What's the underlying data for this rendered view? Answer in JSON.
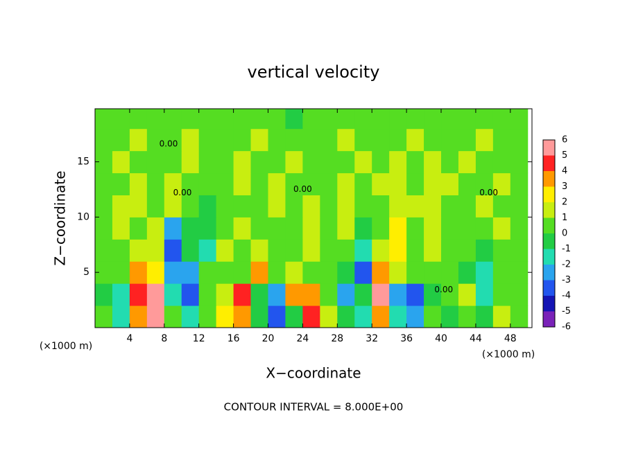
{
  "chart_data": {
    "type": "heatmap",
    "title": "vertical velocity",
    "x_label": "X−coordinate",
    "y_label": "Z−coordinate",
    "x_unit": "(×1000 m)",
    "y_unit": "(×1000 m)",
    "footer": "CONTOUR INTERVAL = 8.000E+00",
    "xlim": [
      0,
      50.5
    ],
    "ylim": [
      0,
      19.8
    ],
    "xticks": [
      4,
      8,
      12,
      16,
      20,
      24,
      28,
      32,
      36,
      40,
      44,
      48
    ],
    "yticks": [
      5,
      10,
      15
    ],
    "x": [
      1,
      3,
      5,
      7,
      9,
      11,
      13,
      15,
      17,
      19,
      21,
      23,
      25,
      27,
      29,
      31,
      33,
      35,
      37,
      39,
      41,
      43,
      45,
      47,
      49
    ],
    "y": [
      1,
      3,
      5,
      7,
      9,
      11,
      13,
      15,
      17,
      19
    ],
    "values": [
      [
        0.5,
        -2,
        3,
        5,
        0.5,
        -2,
        0.5,
        2,
        3,
        -1,
        -4,
        -1,
        4,
        1,
        -1,
        -2,
        3,
        -2,
        -3,
        0.5,
        -1,
        0.5,
        -1,
        1,
        0.5
      ],
      [
        -1,
        -2,
        4,
        6,
        -2,
        -4,
        0.5,
        1,
        4,
        -0.5,
        -3,
        3,
        3,
        0.5,
        -3,
        -1,
        6,
        -3,
        -4,
        -1,
        0.5,
        1,
        -2,
        0.5,
        0.5
      ],
      [
        0.5,
        0.5,
        3,
        2,
        -3,
        -3,
        0.5,
        0.5,
        0.5,
        3,
        0.5,
        1,
        0.5,
        0.5,
        -1,
        -4,
        3,
        1,
        0.5,
        0.5,
        0.5,
        -1,
        -2,
        0.5,
        0.5
      ],
      [
        0.5,
        0.5,
        1,
        1,
        -4,
        -1,
        -2,
        1,
        0.5,
        1,
        0.5,
        0.5,
        1,
        0.5,
        0.5,
        -2,
        1,
        2,
        0.5,
        1,
        0.5,
        0.5,
        -1,
        0.5,
        0.5
      ],
      [
        0.5,
        1,
        0.5,
        1,
        -3,
        -1,
        -1,
        0.5,
        1,
        0.5,
        0.5,
        0.5,
        1,
        0.5,
        1,
        -1,
        0.5,
        2,
        0.5,
        1.5,
        0.5,
        0.5,
        0.5,
        1,
        0.5
      ],
      [
        0.5,
        1,
        1,
        0.5,
        1,
        0.5,
        -1,
        0.5,
        0.5,
        0.5,
        1,
        0.5,
        1,
        0.5,
        1,
        0.5,
        0.5,
        1,
        1.5,
        1,
        0.5,
        0.5,
        1,
        0.5,
        0.5
      ],
      [
        0.5,
        0.5,
        1,
        0.5,
        1,
        0.5,
        0.5,
        0.5,
        1,
        0.5,
        1,
        0.5,
        0.5,
        0.5,
        1,
        0.5,
        1,
        1,
        0.5,
        1,
        1,
        0.5,
        0.5,
        1,
        0.5
      ],
      [
        0.5,
        1,
        0.5,
        0.5,
        0.5,
        1,
        0.5,
        0.5,
        1,
        0.5,
        0.5,
        1,
        0.5,
        0.5,
        0.5,
        1,
        0.5,
        1,
        0.5,
        1,
        0.5,
        1,
        0.5,
        0.5,
        0.5
      ],
      [
        0.5,
        0.5,
        1,
        0.5,
        0.5,
        1,
        0.5,
        0.5,
        0.5,
        1,
        0.5,
        0.5,
        0.5,
        0.5,
        1,
        0.5,
        0.5,
        0.5,
        1,
        0.5,
        0.5,
        0.5,
        1,
        0.5,
        0.5
      ],
      [
        0.5,
        0.5,
        0.5,
        0.5,
        0.5,
        0.5,
        0.5,
        0.5,
        0.5,
        0.5,
        0.5,
        -0.5,
        0.5,
        0.5,
        0.5,
        0.5,
        0.5,
        0.5,
        0.5,
        0.5,
        0.5,
        0.5,
        0.5,
        0.5,
        0.5
      ]
    ],
    "colorbar": {
      "ticks": [
        -6,
        -5,
        -4,
        -3,
        -2,
        -1,
        0,
        1,
        2,
        3,
        4,
        5,
        6
      ],
      "colors": [
        "#7a22b8",
        "#1414b4",
        "#2255ee",
        "#2aa4ee",
        "#22dcb0",
        "#22cc44",
        "#55dd22",
        "#c8ee10",
        "#ffee00",
        "#ff9900",
        "#ff2222",
        "#ff9a9a"
      ]
    },
    "contour_labels": [
      {
        "label": "0.00",
        "x": 8.5,
        "y": 16.6
      },
      {
        "label": "0.00",
        "x": 10.1,
        "y": 12.2
      },
      {
        "label": "0.00",
        "x": 24,
        "y": 12.5
      },
      {
        "label": "0.00",
        "x": 45.5,
        "y": 12.2
      },
      {
        "label": "0.00",
        "x": 40.3,
        "y": 3.4
      }
    ]
  }
}
